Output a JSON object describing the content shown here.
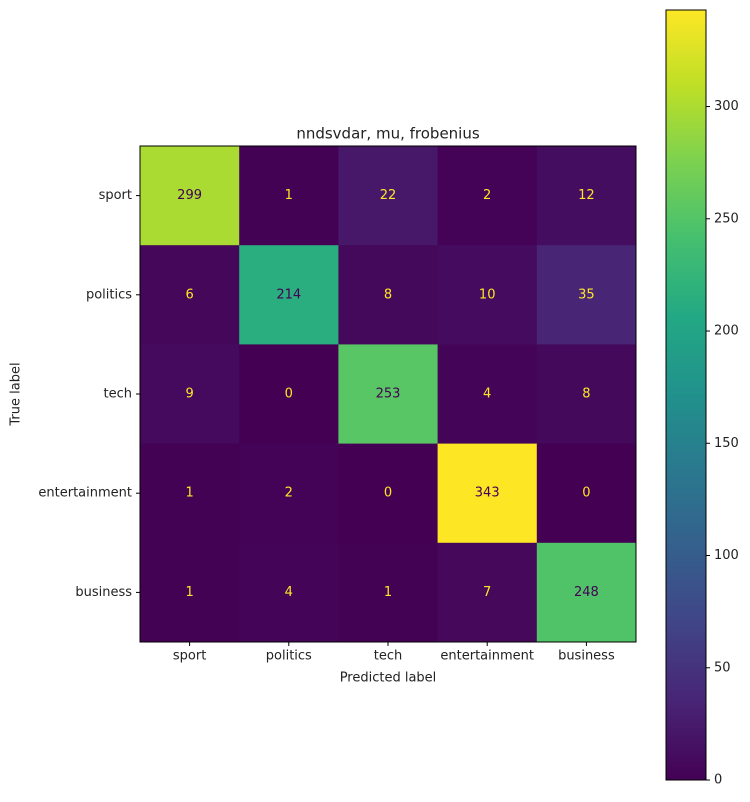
{
  "chart_data": {
    "type": "heatmap",
    "title": "nndsvdar, mu, frobenius",
    "xlabel": "Predicted label",
    "ylabel": "True label",
    "x_categories": [
      "sport",
      "politics",
      "tech",
      "entertainment",
      "business"
    ],
    "y_categories": [
      "sport",
      "politics",
      "tech",
      "entertainment",
      "business"
    ],
    "values": [
      [
        299,
        1,
        22,
        2,
        12
      ],
      [
        6,
        214,
        8,
        10,
        35
      ],
      [
        9,
        0,
        253,
        4,
        8
      ],
      [
        1,
        2,
        0,
        343,
        0
      ],
      [
        1,
        4,
        1,
        7,
        248
      ]
    ],
    "colormap": "viridis",
    "clim": [
      0,
      343
    ],
    "cticks": [
      0,
      50,
      100,
      150,
      200,
      250,
      300
    ]
  }
}
